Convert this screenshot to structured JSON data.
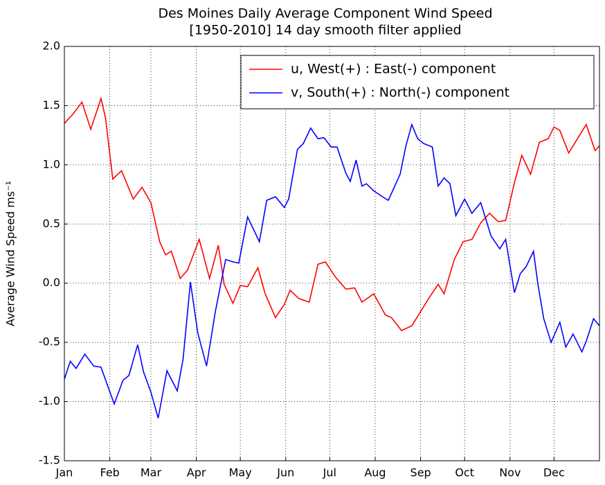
{
  "chart_data": {
    "type": "line",
    "title": "Des Moines Daily Average Component Wind Speed",
    "subtitle": "[1950-2010] 14 day smooth filter applied",
    "y_label": "Average Wind Speed ms⁻¹",
    "xlim": [
      1,
      366
    ],
    "xticks": [
      {
        "value": 1,
        "label": "Jan"
      },
      {
        "value": 32,
        "label": "Feb"
      },
      {
        "value": 60,
        "label": "Mar"
      },
      {
        "value": 91,
        "label": "Apr"
      },
      {
        "value": 121,
        "label": "May"
      },
      {
        "value": 152,
        "label": "Jun"
      },
      {
        "value": 182,
        "label": "Jul"
      },
      {
        "value": 213,
        "label": "Aug"
      },
      {
        "value": 244,
        "label": "Sep"
      },
      {
        "value": 274,
        "label": "Oct"
      },
      {
        "value": 305,
        "label": "Nov"
      },
      {
        "value": 335,
        "label": "Dec"
      }
    ],
    "ylim": [
      -1.5,
      2.0
    ],
    "yticks": [
      -1.5,
      {
        "value": -1.0,
        "label": "-1.0"
      },
      -0.5,
      {
        "value": 0,
        "label": "0.0"
      },
      0.5,
      {
        "value": 1.0,
        "label": "1.0"
      },
      1.5,
      {
        "value": 2.0,
        "label": "2.0"
      }
    ],
    "grid": true,
    "legend": "upper right",
    "series": [
      {
        "name": "u, West(+) : East(-) component",
        "color": "#ff0000",
        "x": [
          1,
          7,
          13,
          19,
          26,
          29,
          34,
          40,
          48,
          54,
          60,
          66,
          70,
          74,
          80,
          85,
          93,
          100,
          106,
          110,
          116,
          121,
          126,
          133,
          138,
          145,
          151,
          155,
          161,
          168,
          174,
          179,
          186,
          193,
          199,
          204,
          212,
          220,
          224,
          231,
          238,
          244,
          250,
          256,
          260,
          267,
          273,
          279,
          285,
          291,
          297,
          302,
          308,
          313,
          319,
          325,
          331,
          335,
          339,
          345,
          351,
          357,
          363,
          366
        ],
        "values": [
          1.35,
          1.43,
          1.53,
          1.3,
          1.56,
          1.4,
          0.88,
          0.95,
          0.71,
          0.81,
          0.68,
          0.35,
          0.24,
          0.27,
          0.04,
          0.11,
          0.37,
          0.04,
          0.32,
          -0.01,
          -0.17,
          -0.02,
          -0.03,
          0.13,
          -0.09,
          -0.29,
          -0.18,
          -0.06,
          -0.13,
          -0.16,
          0.16,
          0.18,
          0.05,
          -0.05,
          -0.04,
          -0.16,
          -0.09,
          -0.27,
          -0.29,
          -0.4,
          -0.36,
          -0.24,
          -0.12,
          -0.01,
          -0.09,
          0.2,
          0.35,
          0.37,
          0.51,
          0.59,
          0.52,
          0.53,
          0.85,
          1.08,
          0.92,
          1.19,
          1.22,
          1.32,
          1.29,
          1.1,
          1.22,
          1.34,
          1.12,
          1.16
        ]
      },
      {
        "name": "v, South(+) : North(-) component",
        "color": "#0000ff",
        "x": [
          1,
          5,
          9,
          15,
          21,
          26,
          35,
          41,
          45,
          51,
          55,
          60,
          65,
          71,
          78,
          82,
          87,
          92,
          98,
          104,
          111,
          116,
          120,
          126,
          134,
          139,
          145,
          151,
          154,
          160,
          164,
          169,
          174,
          178,
          183,
          187,
          193,
          196,
          200,
          204,
          207,
          212,
          218,
          222,
          230,
          234,
          238,
          242,
          246,
          252,
          256,
          260,
          264,
          268,
          274,
          279,
          285,
          292,
          298,
          302,
          308,
          312,
          316,
          321,
          324,
          328,
          333,
          339,
          343,
          348,
          354,
          357,
          362,
          366
        ],
        "values": [
          -0.81,
          -0.66,
          -0.72,
          -0.6,
          -0.7,
          -0.71,
          -1.02,
          -0.82,
          -0.78,
          -0.52,
          -0.75,
          -0.92,
          -1.14,
          -0.74,
          -0.91,
          -0.64,
          0.01,
          -0.42,
          -0.7,
          -0.24,
          0.2,
          0.18,
          0.17,
          0.56,
          0.35,
          0.7,
          0.73,
          0.64,
          0.71,
          1.13,
          1.18,
          1.31,
          1.22,
          1.23,
          1.15,
          1.15,
          0.93,
          0.86,
          1.04,
          0.82,
          0.84,
          0.78,
          0.73,
          0.7,
          0.92,
          1.16,
          1.34,
          1.22,
          1.18,
          1.15,
          0.82,
          0.89,
          0.84,
          0.57,
          0.71,
          0.59,
          0.68,
          0.4,
          0.29,
          0.37,
          -0.08,
          0.08,
          0.14,
          0.27,
          -0.01,
          -0.3,
          -0.5,
          -0.33,
          -0.54,
          -0.43,
          -0.58,
          -0.49,
          -0.3,
          -0.36
        ]
      }
    ]
  }
}
